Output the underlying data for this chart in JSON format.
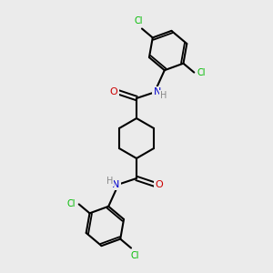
{
  "background_color": "#ebebeb",
  "bond_color": "#000000",
  "atom_colors": {
    "N": "#0000cc",
    "O": "#cc0000",
    "Cl": "#00bb00",
    "H": "#888888"
  },
  "figsize": [
    3.0,
    3.0
  ],
  "dpi": 100
}
